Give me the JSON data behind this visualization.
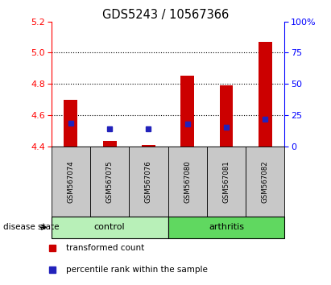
{
  "title": "GDS5243 / 10567366",
  "samples": [
    "GSM567074",
    "GSM567075",
    "GSM567076",
    "GSM567080",
    "GSM567081",
    "GSM567082"
  ],
  "bar_tops": [
    4.7,
    4.435,
    4.41,
    4.855,
    4.79,
    5.07
  ],
  "bar_bottom": 4.4,
  "blue_y": [
    4.553,
    4.517,
    4.515,
    4.543,
    4.523,
    4.578
  ],
  "ylim_left": [
    4.4,
    5.2
  ],
  "ylim_right": [
    0,
    100
  ],
  "yticks_left": [
    4.4,
    4.6,
    4.8,
    5.0,
    5.2
  ],
  "yticks_right": [
    0,
    25,
    50,
    75,
    100
  ],
  "ytick_labels_right": [
    "0",
    "25",
    "50",
    "75",
    "100%"
  ],
  "grid_yticks": [
    4.6,
    4.8,
    5.0
  ],
  "groups": [
    {
      "label": "control",
      "indices": [
        0,
        1,
        2
      ],
      "color": "#b8f0b8"
    },
    {
      "label": "arthritis",
      "indices": [
        3,
        4,
        5
      ],
      "color": "#60d860"
    }
  ],
  "group_label": "disease state",
  "bar_color": "#cc0000",
  "blue_color": "#2222bb",
  "sample_bg": "#c8c8c8",
  "legend_items": [
    {
      "color": "#cc0000",
      "label": "transformed count"
    },
    {
      "color": "#2222bb",
      "label": "percentile rank within the sample"
    }
  ]
}
